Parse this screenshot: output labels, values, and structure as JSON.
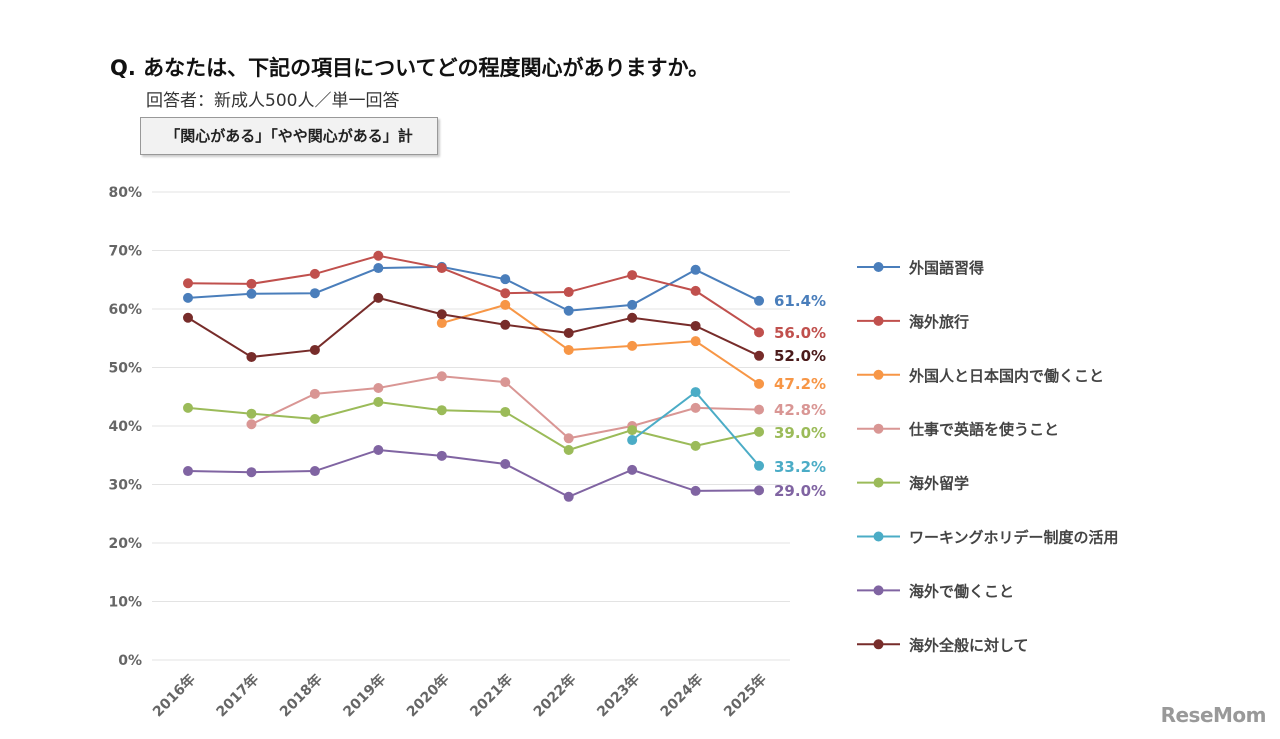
{
  "header": {
    "title": "Q. あなたは、下記の項目についてどの程度関心がありますか。",
    "subtitle": "回答者：新成人500人／単一回答",
    "box_label": "「関心がある」「やや関心がある」計"
  },
  "logo": "ReseMom",
  "chart_data": {
    "type": "line",
    "categories": [
      "2016年",
      "2017年",
      "2018年",
      "2019年",
      "2020年",
      "2021年",
      "2022年",
      "2023年",
      "2024年",
      "2025年"
    ],
    "ylim": [
      0,
      80
    ],
    "yticks": [
      "0%",
      "10%",
      "20%",
      "30%",
      "40%",
      "50%",
      "60%",
      "70%",
      "80%"
    ],
    "grid": true,
    "legend_position": "right",
    "series": [
      {
        "name": "外国語習得",
        "color": "#4a7ebb",
        "values": [
          61.9,
          62.6,
          62.7,
          67.0,
          67.2,
          65.1,
          59.7,
          60.7,
          66.7,
          61.4
        ],
        "end_label": "61.4%"
      },
      {
        "name": "海外旅行",
        "color": "#c0504d",
        "values": [
          64.4,
          64.3,
          66.0,
          69.1,
          67.0,
          62.7,
          62.9,
          65.8,
          63.1,
          56.0
        ],
        "end_label": "56.0%"
      },
      {
        "name": "外国人と日本国内で働くこと",
        "color": "#f79646",
        "values": [
          null,
          null,
          null,
          null,
          57.6,
          60.7,
          53.0,
          53.7,
          54.5,
          47.2
        ],
        "end_label": "47.2%"
      },
      {
        "name": "仕事で英語を使うこと",
        "color": "#d99694",
        "values": [
          null,
          40.3,
          45.5,
          46.5,
          48.5,
          47.5,
          37.9,
          40.0,
          43.1,
          42.8
        ],
        "end_label": "42.8%"
      },
      {
        "name": "海外留学",
        "color": "#9bbb59",
        "values": [
          43.1,
          42.1,
          41.2,
          44.1,
          42.7,
          42.4,
          35.9,
          39.3,
          36.6,
          39.0
        ],
        "end_label": "39.0%"
      },
      {
        "name": "ワーキングホリデー制度の活用",
        "color": "#4bacc6",
        "values": [
          null,
          null,
          null,
          null,
          null,
          null,
          null,
          37.6,
          45.8,
          33.2
        ],
        "end_label": "33.2%"
      },
      {
        "name": "海外で働くこと",
        "color": "#8064a2",
        "values": [
          32.3,
          32.1,
          32.3,
          35.9,
          34.9,
          33.5,
          27.9,
          32.5,
          28.9,
          29.0
        ],
        "end_label": "29.0%"
      },
      {
        "name": "海外全般に対して",
        "color": "#772c2a",
        "values": [
          58.5,
          51.8,
          53.0,
          61.9,
          59.1,
          57.3,
          55.9,
          58.5,
          57.1,
          52.0
        ],
        "end_label": "52.0%"
      }
    ]
  }
}
